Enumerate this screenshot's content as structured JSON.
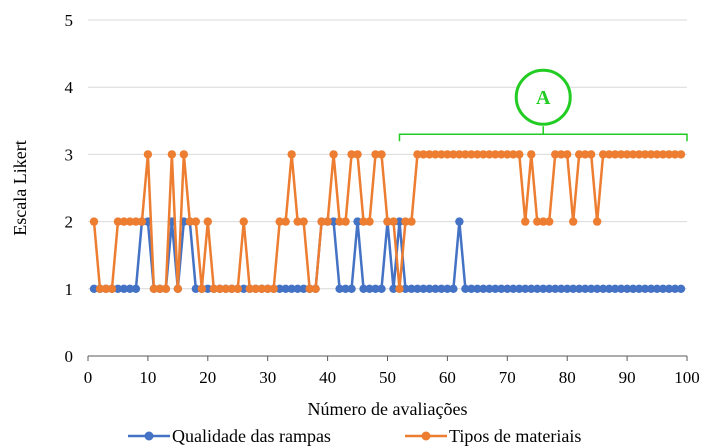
{
  "chart_data": {
    "type": "line",
    "xlabel": "Número de avaliações",
    "ylabel": "Escala Likert",
    "xlim": [
      0,
      100
    ],
    "ylim": [
      0,
      5
    ],
    "x_ticks": [
      0,
      10,
      20,
      30,
      40,
      50,
      60,
      70,
      80,
      90,
      100
    ],
    "y_ticks": [
      0,
      1,
      2,
      3,
      4,
      5
    ],
    "grid": "horizontal",
    "legend_position": "bottom",
    "x": [
      1,
      2,
      3,
      4,
      5,
      6,
      7,
      8,
      9,
      10,
      11,
      12,
      13,
      14,
      15,
      16,
      17,
      18,
      19,
      20,
      21,
      22,
      23,
      24,
      25,
      26,
      27,
      28,
      29,
      30,
      31,
      32,
      33,
      34,
      35,
      36,
      37,
      38,
      39,
      40,
      41,
      42,
      43,
      44,
      45,
      46,
      47,
      48,
      49,
      50,
      51,
      52,
      53,
      54,
      55,
      56,
      57,
      58,
      59,
      60,
      61,
      62,
      63,
      64,
      65,
      66,
      67,
      68,
      69,
      70,
      71,
      72,
      73,
      74,
      75,
      76,
      77,
      78,
      79,
      80,
      81,
      82,
      83,
      84,
      85,
      86,
      87,
      88,
      89,
      90,
      91,
      92,
      93,
      94,
      95,
      96,
      97,
      98,
      99
    ],
    "series": [
      {
        "name": "Qualidade das rampas",
        "color": "#4472c4",
        "values": [
          1,
          1,
          1,
          1,
          1,
          1,
          1,
          1,
          2,
          2,
          1,
          1,
          1,
          2,
          1,
          2,
          2,
          1,
          1,
          1,
          1,
          1,
          1,
          1,
          1,
          1,
          1,
          1,
          1,
          1,
          1,
          1,
          1,
          1,
          1,
          1,
          1,
          1,
          2,
          2,
          2,
          1,
          1,
          1,
          2,
          1,
          1,
          1,
          1,
          2,
          1,
          2,
          1,
          1,
          1,
          1,
          1,
          1,
          1,
          1,
          1,
          2,
          1,
          1,
          1,
          1,
          1,
          1,
          1,
          1,
          1,
          1,
          1,
          1,
          1,
          1,
          1,
          1,
          1,
          1,
          1,
          1,
          1,
          1,
          1,
          1,
          1,
          1,
          1,
          1,
          1,
          1,
          1,
          1,
          1,
          1,
          1,
          1,
          1
        ]
      },
      {
        "name": "Tipos de materiais",
        "color": "#ed7d31",
        "values": [
          2,
          1,
          1,
          1,
          2,
          2,
          2,
          2,
          2,
          3,
          1,
          1,
          1,
          3,
          1,
          3,
          2,
          2,
          1,
          2,
          1,
          1,
          1,
          1,
          1,
          2,
          1,
          1,
          1,
          1,
          1,
          2,
          2,
          3,
          2,
          2,
          1,
          1,
          2,
          2,
          3,
          2,
          2,
          3,
          3,
          2,
          2,
          3,
          3,
          2,
          2,
          1,
          2,
          2,
          3,
          3,
          3,
          3,
          3,
          3,
          3,
          3,
          3,
          3,
          3,
          3,
          3,
          3,
          3,
          3,
          3,
          3,
          2,
          3,
          2,
          2,
          2,
          3,
          3,
          3,
          2,
          3,
          3,
          3,
          2,
          3,
          3,
          3,
          3,
          3,
          3,
          3,
          3,
          3,
          3,
          3,
          3,
          3,
          3
        ]
      }
    ],
    "annotation": {
      "label": "A",
      "color": "#22cc22",
      "x_range": [
        52,
        100
      ],
      "y": 3.3
    }
  }
}
